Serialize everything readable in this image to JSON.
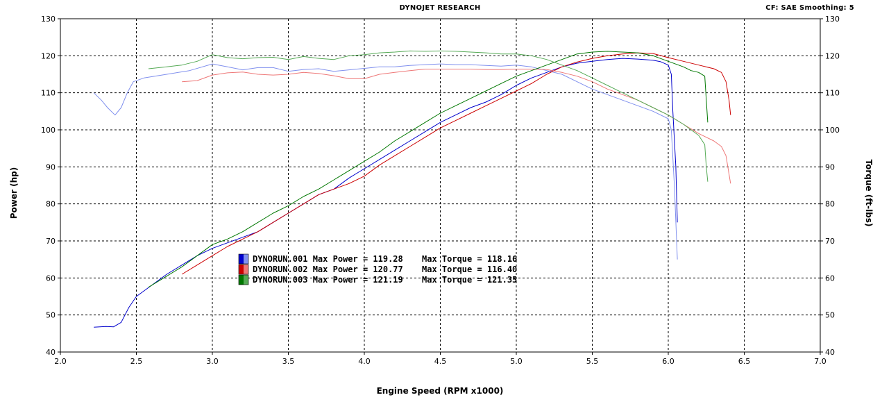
{
  "header": {
    "title": "DYNOJET RESEARCH",
    "settings": "CF: SAE  Smoothing: 5"
  },
  "chart_data": {
    "type": "line",
    "xlabel": "Engine Speed (RPM x1000)",
    "ylabel_left": "Power (hp)",
    "ylabel_right": "Torque (ft-lbs)",
    "xlim": [
      2.0,
      7.0
    ],
    "ylim": [
      40,
      130
    ],
    "y2lim": [
      40,
      130
    ],
    "x_ticks": [
      "2.0",
      "2.5",
      "3.0",
      "3.5",
      "4.0",
      "4.5",
      "5.0",
      "5.5",
      "6.0",
      "6.5",
      "7.0"
    ],
    "y_ticks": [
      "40",
      "50",
      "60",
      "70",
      "80",
      "90",
      "100",
      "110",
      "120",
      "130"
    ],
    "y2_ticks": [
      "40",
      "50",
      "60",
      "70",
      "80",
      "90",
      "100",
      "110",
      "120",
      "130"
    ],
    "grid": true,
    "legend_position": "center-left",
    "series": [
      {
        "name": "DYNORUN.001",
        "metric": "power",
        "color": "#0000cc",
        "max_power": "119.28",
        "max_torque": "118.16",
        "points": [
          [
            2.22,
            46.7
          ],
          [
            2.3,
            46.9
          ],
          [
            2.35,
            46.8
          ],
          [
            2.4,
            48
          ],
          [
            2.45,
            52
          ],
          [
            2.5,
            55
          ],
          [
            2.6,
            58
          ],
          [
            2.7,
            61
          ],
          [
            2.8,
            63.5
          ],
          [
            2.9,
            66
          ],
          [
            3.0,
            68
          ],
          [
            3.1,
            69.5
          ],
          [
            3.2,
            71
          ],
          [
            3.3,
            72.5
          ],
          [
            3.4,
            75
          ],
          [
            3.5,
            77.5
          ],
          [
            3.6,
            80
          ],
          [
            3.7,
            82.5
          ],
          [
            3.8,
            84
          ],
          [
            3.9,
            87
          ],
          [
            4.0,
            89.5
          ],
          [
            4.1,
            92
          ],
          [
            4.2,
            94.5
          ],
          [
            4.3,
            97
          ],
          [
            4.4,
            99.5
          ],
          [
            4.5,
            102
          ],
          [
            4.6,
            104
          ],
          [
            4.7,
            106
          ],
          [
            4.8,
            107.5
          ],
          [
            4.9,
            109.5
          ],
          [
            5.0,
            112
          ],
          [
            5.1,
            114
          ],
          [
            5.2,
            115.5
          ],
          [
            5.3,
            117
          ],
          [
            5.4,
            118
          ],
          [
            5.5,
            118.5
          ],
          [
            5.6,
            119
          ],
          [
            5.7,
            119.3
          ],
          [
            5.8,
            119.1
          ],
          [
            5.9,
            118.8
          ],
          [
            5.95,
            118.4
          ],
          [
            6.0,
            117.5
          ],
          [
            6.02,
            115
          ],
          [
            6.03,
            105
          ],
          [
            6.05,
            90
          ],
          [
            6.06,
            75
          ]
        ]
      },
      {
        "name": "DYNORUN.001",
        "metric": "torque",
        "color": "#8090ee",
        "points": [
          [
            2.22,
            110
          ],
          [
            2.27,
            108
          ],
          [
            2.31,
            106
          ],
          [
            2.36,
            104
          ],
          [
            2.4,
            106
          ],
          [
            2.44,
            110
          ],
          [
            2.48,
            113
          ],
          [
            2.55,
            114
          ],
          [
            2.7,
            115
          ],
          [
            2.85,
            116
          ],
          [
            3.0,
            117.8
          ],
          [
            3.1,
            117
          ],
          [
            3.2,
            116.2
          ],
          [
            3.3,
            116.8
          ],
          [
            3.4,
            116.8
          ],
          [
            3.5,
            115.8
          ],
          [
            3.6,
            116.3
          ],
          [
            3.7,
            116.5
          ],
          [
            3.8,
            115.8
          ],
          [
            3.9,
            116.2
          ],
          [
            4.0,
            116.6
          ],
          [
            4.1,
            117
          ],
          [
            4.2,
            117
          ],
          [
            4.3,
            117.4
          ],
          [
            4.4,
            117.6
          ],
          [
            4.5,
            117.8
          ],
          [
            4.6,
            117.6
          ],
          [
            4.7,
            117.6
          ],
          [
            4.8,
            117.4
          ],
          [
            4.9,
            117.2
          ],
          [
            5.0,
            117.5
          ],
          [
            5.1,
            117
          ],
          [
            5.2,
            116
          ],
          [
            5.3,
            115
          ],
          [
            5.4,
            113
          ],
          [
            5.5,
            111
          ],
          [
            5.6,
            109.5
          ],
          [
            5.7,
            108
          ],
          [
            5.8,
            106.5
          ],
          [
            5.9,
            105
          ],
          [
            6.0,
            103
          ],
          [
            6.02,
            100
          ],
          [
            6.04,
            85
          ],
          [
            6.06,
            65
          ]
        ]
      },
      {
        "name": "DYNORUN.002",
        "metric": "power",
        "color": "#cc0000",
        "max_power": "120.77",
        "max_torque": "116.40",
        "points": [
          [
            2.8,
            61
          ],
          [
            2.9,
            63.5
          ],
          [
            3.0,
            66
          ],
          [
            3.1,
            68.5
          ],
          [
            3.2,
            70.5
          ],
          [
            3.3,
            72.5
          ],
          [
            3.4,
            75
          ],
          [
            3.5,
            77.5
          ],
          [
            3.6,
            80
          ],
          [
            3.7,
            82.5
          ],
          [
            3.8,
            84
          ],
          [
            3.9,
            85.5
          ],
          [
            4.0,
            87.5
          ],
          [
            4.1,
            90.5
          ],
          [
            4.2,
            93
          ],
          [
            4.3,
            95.5
          ],
          [
            4.4,
            98
          ],
          [
            4.5,
            100.5
          ],
          [
            4.6,
            102.5
          ],
          [
            4.7,
            104.5
          ],
          [
            4.8,
            106.5
          ],
          [
            4.9,
            108.5
          ],
          [
            5.0,
            110.5
          ],
          [
            5.1,
            112.5
          ],
          [
            5.2,
            115
          ],
          [
            5.3,
            117
          ],
          [
            5.4,
            118.3
          ],
          [
            5.5,
            119.3
          ],
          [
            5.6,
            120
          ],
          [
            5.7,
            120.5
          ],
          [
            5.8,
            120.8
          ],
          [
            5.9,
            120.6
          ],
          [
            6.0,
            119.5
          ],
          [
            6.1,
            118.5
          ],
          [
            6.2,
            117.5
          ],
          [
            6.3,
            116.5
          ],
          [
            6.35,
            115.5
          ],
          [
            6.38,
            113
          ],
          [
            6.4,
            108
          ],
          [
            6.41,
            104
          ]
        ]
      },
      {
        "name": "DYNORUN.002",
        "metric": "torque",
        "color": "#ee7777",
        "points": [
          [
            2.8,
            113
          ],
          [
            2.9,
            113.3
          ],
          [
            3.0,
            114.8
          ],
          [
            3.1,
            115.4
          ],
          [
            3.2,
            115.6
          ],
          [
            3.3,
            115
          ],
          [
            3.4,
            114.8
          ],
          [
            3.5,
            115
          ],
          [
            3.6,
            115.5
          ],
          [
            3.7,
            115.2
          ],
          [
            3.8,
            114.6
          ],
          [
            3.9,
            113.8
          ],
          [
            4.0,
            113.8
          ],
          [
            4.1,
            115
          ],
          [
            4.2,
            115.5
          ],
          [
            4.3,
            116
          ],
          [
            4.4,
            116.4
          ],
          [
            4.5,
            116.4
          ],
          [
            4.6,
            116.4
          ],
          [
            4.7,
            116.4
          ],
          [
            4.8,
            116.3
          ],
          [
            4.9,
            116.3
          ],
          [
            5.0,
            116.4
          ],
          [
            5.1,
            116.4
          ],
          [
            5.2,
            116.3
          ],
          [
            5.3,
            115.5
          ],
          [
            5.4,
            114.5
          ],
          [
            5.5,
            113
          ],
          [
            5.6,
            111
          ],
          [
            5.7,
            109.5
          ],
          [
            5.8,
            108
          ],
          [
            5.9,
            106
          ],
          [
            6.0,
            104
          ],
          [
            6.1,
            101.5
          ],
          [
            6.2,
            99
          ],
          [
            6.3,
            97
          ],
          [
            6.35,
            95.5
          ],
          [
            6.38,
            93
          ],
          [
            6.4,
            88
          ],
          [
            6.41,
            85.5
          ]
        ]
      },
      {
        "name": "DYNORUN.003",
        "metric": "power",
        "color": "#007700",
        "max_power": "121.19",
        "max_torque": "121.35",
        "points": [
          [
            2.58,
            57.5
          ],
          [
            2.7,
            60.5
          ],
          [
            2.8,
            63
          ],
          [
            2.9,
            66
          ],
          [
            3.0,
            69
          ],
          [
            3.1,
            70.5
          ],
          [
            3.2,
            72.5
          ],
          [
            3.3,
            75
          ],
          [
            3.4,
            77.5
          ],
          [
            3.5,
            79.5
          ],
          [
            3.6,
            82
          ],
          [
            3.7,
            84
          ],
          [
            3.8,
            86.5
          ],
          [
            3.9,
            89
          ],
          [
            4.0,
            91.5
          ],
          [
            4.1,
            94
          ],
          [
            4.2,
            97
          ],
          [
            4.3,
            99.5
          ],
          [
            4.4,
            102
          ],
          [
            4.5,
            104.5
          ],
          [
            4.6,
            106.5
          ],
          [
            4.7,
            108.5
          ],
          [
            4.8,
            110.5
          ],
          [
            4.9,
            112.5
          ],
          [
            5.0,
            114.5
          ],
          [
            5.1,
            116
          ],
          [
            5.2,
            117.5
          ],
          [
            5.3,
            119
          ],
          [
            5.4,
            120.5
          ],
          [
            5.5,
            121
          ],
          [
            5.6,
            121.2
          ],
          [
            5.7,
            121
          ],
          [
            5.8,
            120.8
          ],
          [
            5.9,
            120
          ],
          [
            6.0,
            118.5
          ],
          [
            6.1,
            117
          ],
          [
            6.15,
            116
          ],
          [
            6.2,
            115.5
          ],
          [
            6.24,
            114.5
          ],
          [
            6.25,
            108
          ],
          [
            6.26,
            102
          ]
        ]
      },
      {
        "name": "DYNORUN.003",
        "metric": "torque",
        "color": "#55aa55",
        "points": [
          [
            2.58,
            116.5
          ],
          [
            2.7,
            117
          ],
          [
            2.8,
            117.5
          ],
          [
            2.9,
            118.5
          ],
          [
            3.0,
            120.3
          ],
          [
            3.1,
            119.5
          ],
          [
            3.2,
            119.2
          ],
          [
            3.3,
            119.5
          ],
          [
            3.4,
            119.6
          ],
          [
            3.5,
            119
          ],
          [
            3.6,
            119.8
          ],
          [
            3.7,
            119.3
          ],
          [
            3.8,
            119
          ],
          [
            3.9,
            120
          ],
          [
            4.0,
            120.3
          ],
          [
            4.1,
            120.8
          ],
          [
            4.2,
            121
          ],
          [
            4.3,
            121.3
          ],
          [
            4.4,
            121.2
          ],
          [
            4.5,
            121.3
          ],
          [
            4.6,
            121.2
          ],
          [
            4.7,
            121
          ],
          [
            4.8,
            120.8
          ],
          [
            4.9,
            120.5
          ],
          [
            5.0,
            120.5
          ],
          [
            5.1,
            120
          ],
          [
            5.2,
            119
          ],
          [
            5.3,
            117.5
          ],
          [
            5.4,
            116
          ],
          [
            5.5,
            114
          ],
          [
            5.6,
            112
          ],
          [
            5.7,
            110
          ],
          [
            5.8,
            108
          ],
          [
            5.9,
            106
          ],
          [
            6.0,
            104
          ],
          [
            6.1,
            101.5
          ],
          [
            6.2,
            98.5
          ],
          [
            6.24,
            96
          ],
          [
            6.25,
            90
          ],
          [
            6.26,
            86
          ]
        ]
      }
    ]
  }
}
